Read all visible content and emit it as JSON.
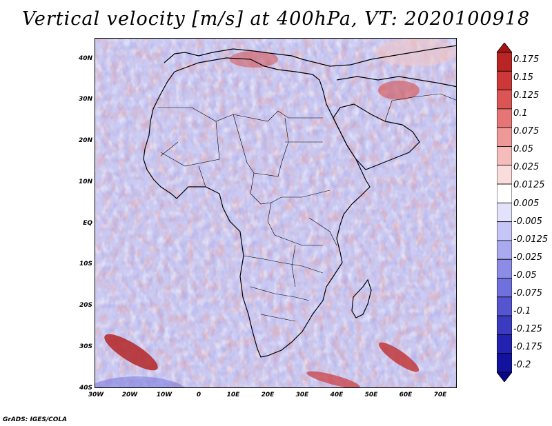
{
  "title": "Vertical velocity [m/s] at 400hPa, VT: 2020100918",
  "footer": "GrADS: IGES/COLA",
  "map": {
    "y_ticks": [
      "40N",
      "30N",
      "20N",
      "10N",
      "EQ",
      "10S",
      "20S",
      "30S",
      "40S"
    ],
    "x_ticks": [
      "30W",
      "20W",
      "10W",
      "0",
      "10E",
      "20E",
      "30E",
      "40E",
      "50E",
      "60E",
      "70E"
    ]
  },
  "colorbar": {
    "labels": [
      "0.175",
      "0.15",
      "0.125",
      "0.1",
      "0.075",
      "0.05",
      "0.025",
      "0.0125",
      "0.005",
      "-0.005",
      "-0.0125",
      "-0.025",
      "-0.05",
      "-0.075",
      "-0.1",
      "-0.125",
      "-0.175",
      "-0.2"
    ],
    "colors": [
      "#a31515",
      "#b92424",
      "#cc3838",
      "#dc5555",
      "#e67575",
      "#ef9898",
      "#f6bcbc",
      "#fbdcdc",
      "#ffffff",
      "#e2e2fb",
      "#c6c6f6",
      "#a9a9ee",
      "#8c8ce6",
      "#7070dc",
      "#5555d0",
      "#3b3bc0",
      "#2222b0",
      "#12129c",
      "#06068a"
    ]
  },
  "colors": {
    "land_outline": "#000000",
    "base_field": "#c9c9f2"
  }
}
